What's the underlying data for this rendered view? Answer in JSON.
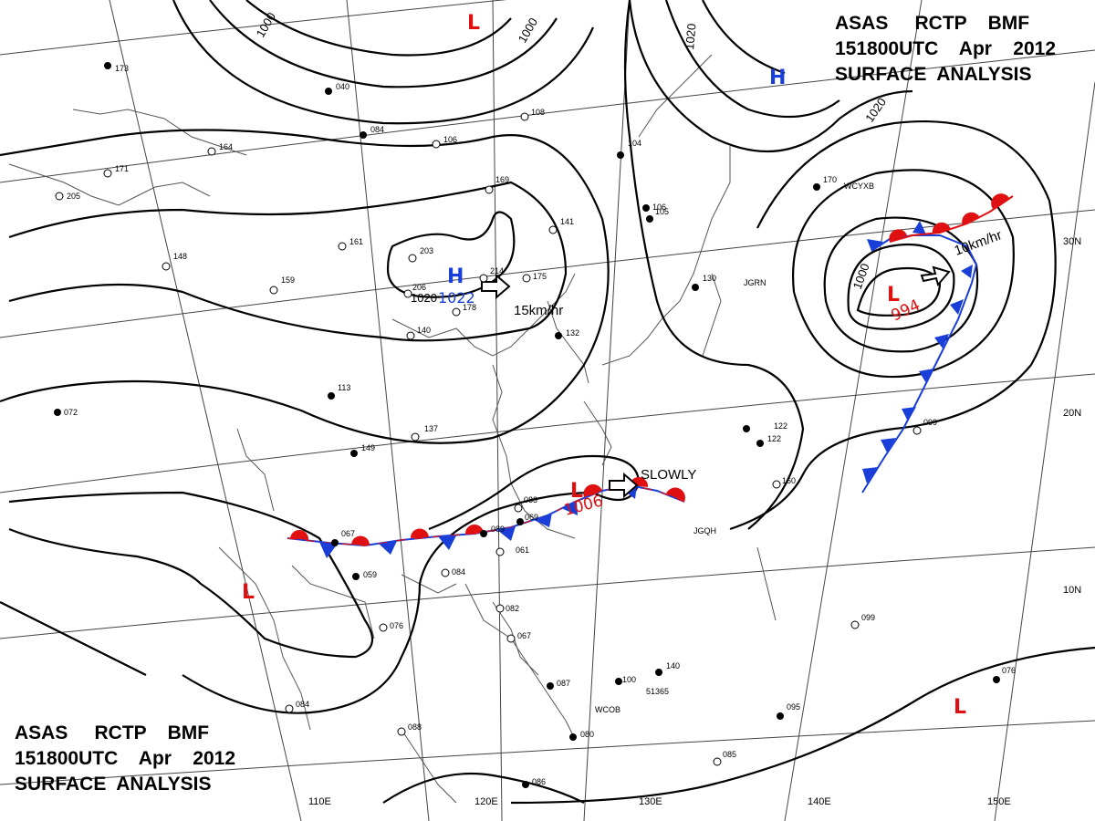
{
  "title": {
    "line1": "ASAS     RCTP    BMF",
    "line2": "151800UTC    Apr    2012",
    "line3": "SURFACE  ANALYSIS"
  },
  "colors": {
    "high": "#1a3fd8",
    "low": "#e01010",
    "cold_front": "#1a3fd8",
    "warm_front": "#e01010",
    "isobar": "#000000",
    "coast": "#555555",
    "grid": "#444444"
  },
  "longitude_labels": [
    "110E",
    "120E",
    "130E",
    "140E",
    "150E"
  ],
  "latitude_labels": [
    "30N",
    "20N",
    "10N"
  ],
  "isobar_labels": [
    "1000",
    "1000",
    "1020",
    "1020",
    "1020",
    "1000"
  ],
  "pressure_centers": [
    {
      "type": "H",
      "value": "1022"
    },
    {
      "type": "H",
      "value": ""
    },
    {
      "type": "L",
      "value": "994"
    },
    {
      "type": "L",
      "value": "1006"
    },
    {
      "type": "L",
      "value": ""
    },
    {
      "type": "L",
      "value": ""
    },
    {
      "type": "L",
      "value": ""
    }
  ],
  "motion_labels": [
    "15km/hr",
    "10km/hr",
    "SLOWLY"
  ],
  "stations": [
    "173",
    "040",
    "084",
    "106",
    "108",
    "164",
    "161",
    "205",
    "171",
    "169",
    "141",
    "148",
    "203",
    "206",
    "214",
    "175",
    "159",
    "178",
    "140",
    "104",
    "105",
    "122",
    "132",
    "113",
    "072",
    "137",
    "149",
    "083",
    "069",
    "089",
    "061",
    "067",
    "059",
    "084",
    "076",
    "082",
    "067",
    "087",
    "100",
    "140",
    "080",
    "086",
    "088",
    "084",
    "099",
    "122",
    "160",
    "099",
    "076",
    "095",
    "085",
    "170",
    "130",
    "106"
  ],
  "station_ids": [
    "JGQH",
    "WCOB",
    "51365",
    "JGRN",
    "WCYXB"
  ]
}
